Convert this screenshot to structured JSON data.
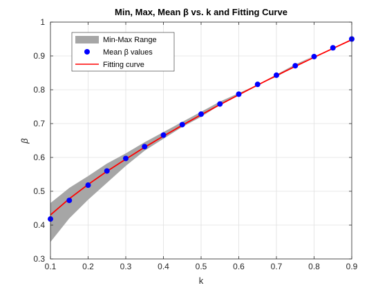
{
  "chart_data": {
    "type": "line",
    "title": "Min, Max, Mean β vs. k and Fitting Curve",
    "xlabel": "k",
    "ylabel": "β",
    "xlim": [
      0.1,
      0.9
    ],
    "ylim": [
      0.3,
      1.0
    ],
    "xticks": [
      "0.1",
      "0.2",
      "0.3",
      "0.4",
      "0.5",
      "0.6",
      "0.7",
      "0.8",
      "0.9"
    ],
    "yticks": [
      "0.3",
      "0.4",
      "0.5",
      "0.6",
      "0.7",
      "0.8",
      "0.9",
      "1"
    ],
    "grid": true,
    "legend_position": "top-left",
    "colors": {
      "band": "#a6a6a6",
      "mean": "#0000ff",
      "fit": "#ff0000",
      "grid": "#e0e0e0",
      "axis": "#262626"
    },
    "series": [
      {
        "name": "Min-Max Range",
        "kind": "band",
        "x": [
          0.1,
          0.15,
          0.2,
          0.25,
          0.3,
          0.35,
          0.4,
          0.45,
          0.5,
          0.55,
          0.6,
          0.65,
          0.7,
          0.75,
          0.8,
          0.85,
          0.9
        ],
        "min": [
          0.35,
          0.42,
          0.475,
          0.525,
          0.575,
          0.62,
          0.655,
          0.69,
          0.72,
          0.755,
          0.785,
          0.815,
          0.838,
          0.87,
          0.9,
          0.925,
          0.95
        ],
        "max": [
          0.465,
          0.51,
          0.545,
          0.582,
          0.612,
          0.645,
          0.675,
          0.705,
          0.735,
          0.765,
          0.79,
          0.815,
          0.845,
          0.875,
          0.9,
          0.925,
          0.95
        ]
      },
      {
        "name": "Mean β values",
        "kind": "markers",
        "x": [
          0.1,
          0.15,
          0.2,
          0.25,
          0.3,
          0.35,
          0.4,
          0.45,
          0.5,
          0.55,
          0.6,
          0.65,
          0.7,
          0.75,
          0.8,
          0.85,
          0.9
        ],
        "y": [
          0.418,
          0.473,
          0.518,
          0.56,
          0.597,
          0.632,
          0.666,
          0.697,
          0.728,
          0.758,
          0.787,
          0.816,
          0.843,
          0.871,
          0.898,
          0.924,
          0.95
        ]
      },
      {
        "name": "Fitting curve",
        "kind": "line",
        "x": [
          0.1,
          0.15,
          0.2,
          0.25,
          0.3,
          0.35,
          0.4,
          0.45,
          0.5,
          0.55,
          0.6,
          0.65,
          0.7,
          0.75,
          0.8,
          0.85,
          0.9
        ],
        "y": [
          0.43,
          0.478,
          0.52,
          0.559,
          0.595,
          0.63,
          0.663,
          0.695,
          0.726,
          0.756,
          0.785,
          0.814,
          0.842,
          0.869,
          0.896,
          0.922,
          0.948
        ]
      }
    ]
  }
}
